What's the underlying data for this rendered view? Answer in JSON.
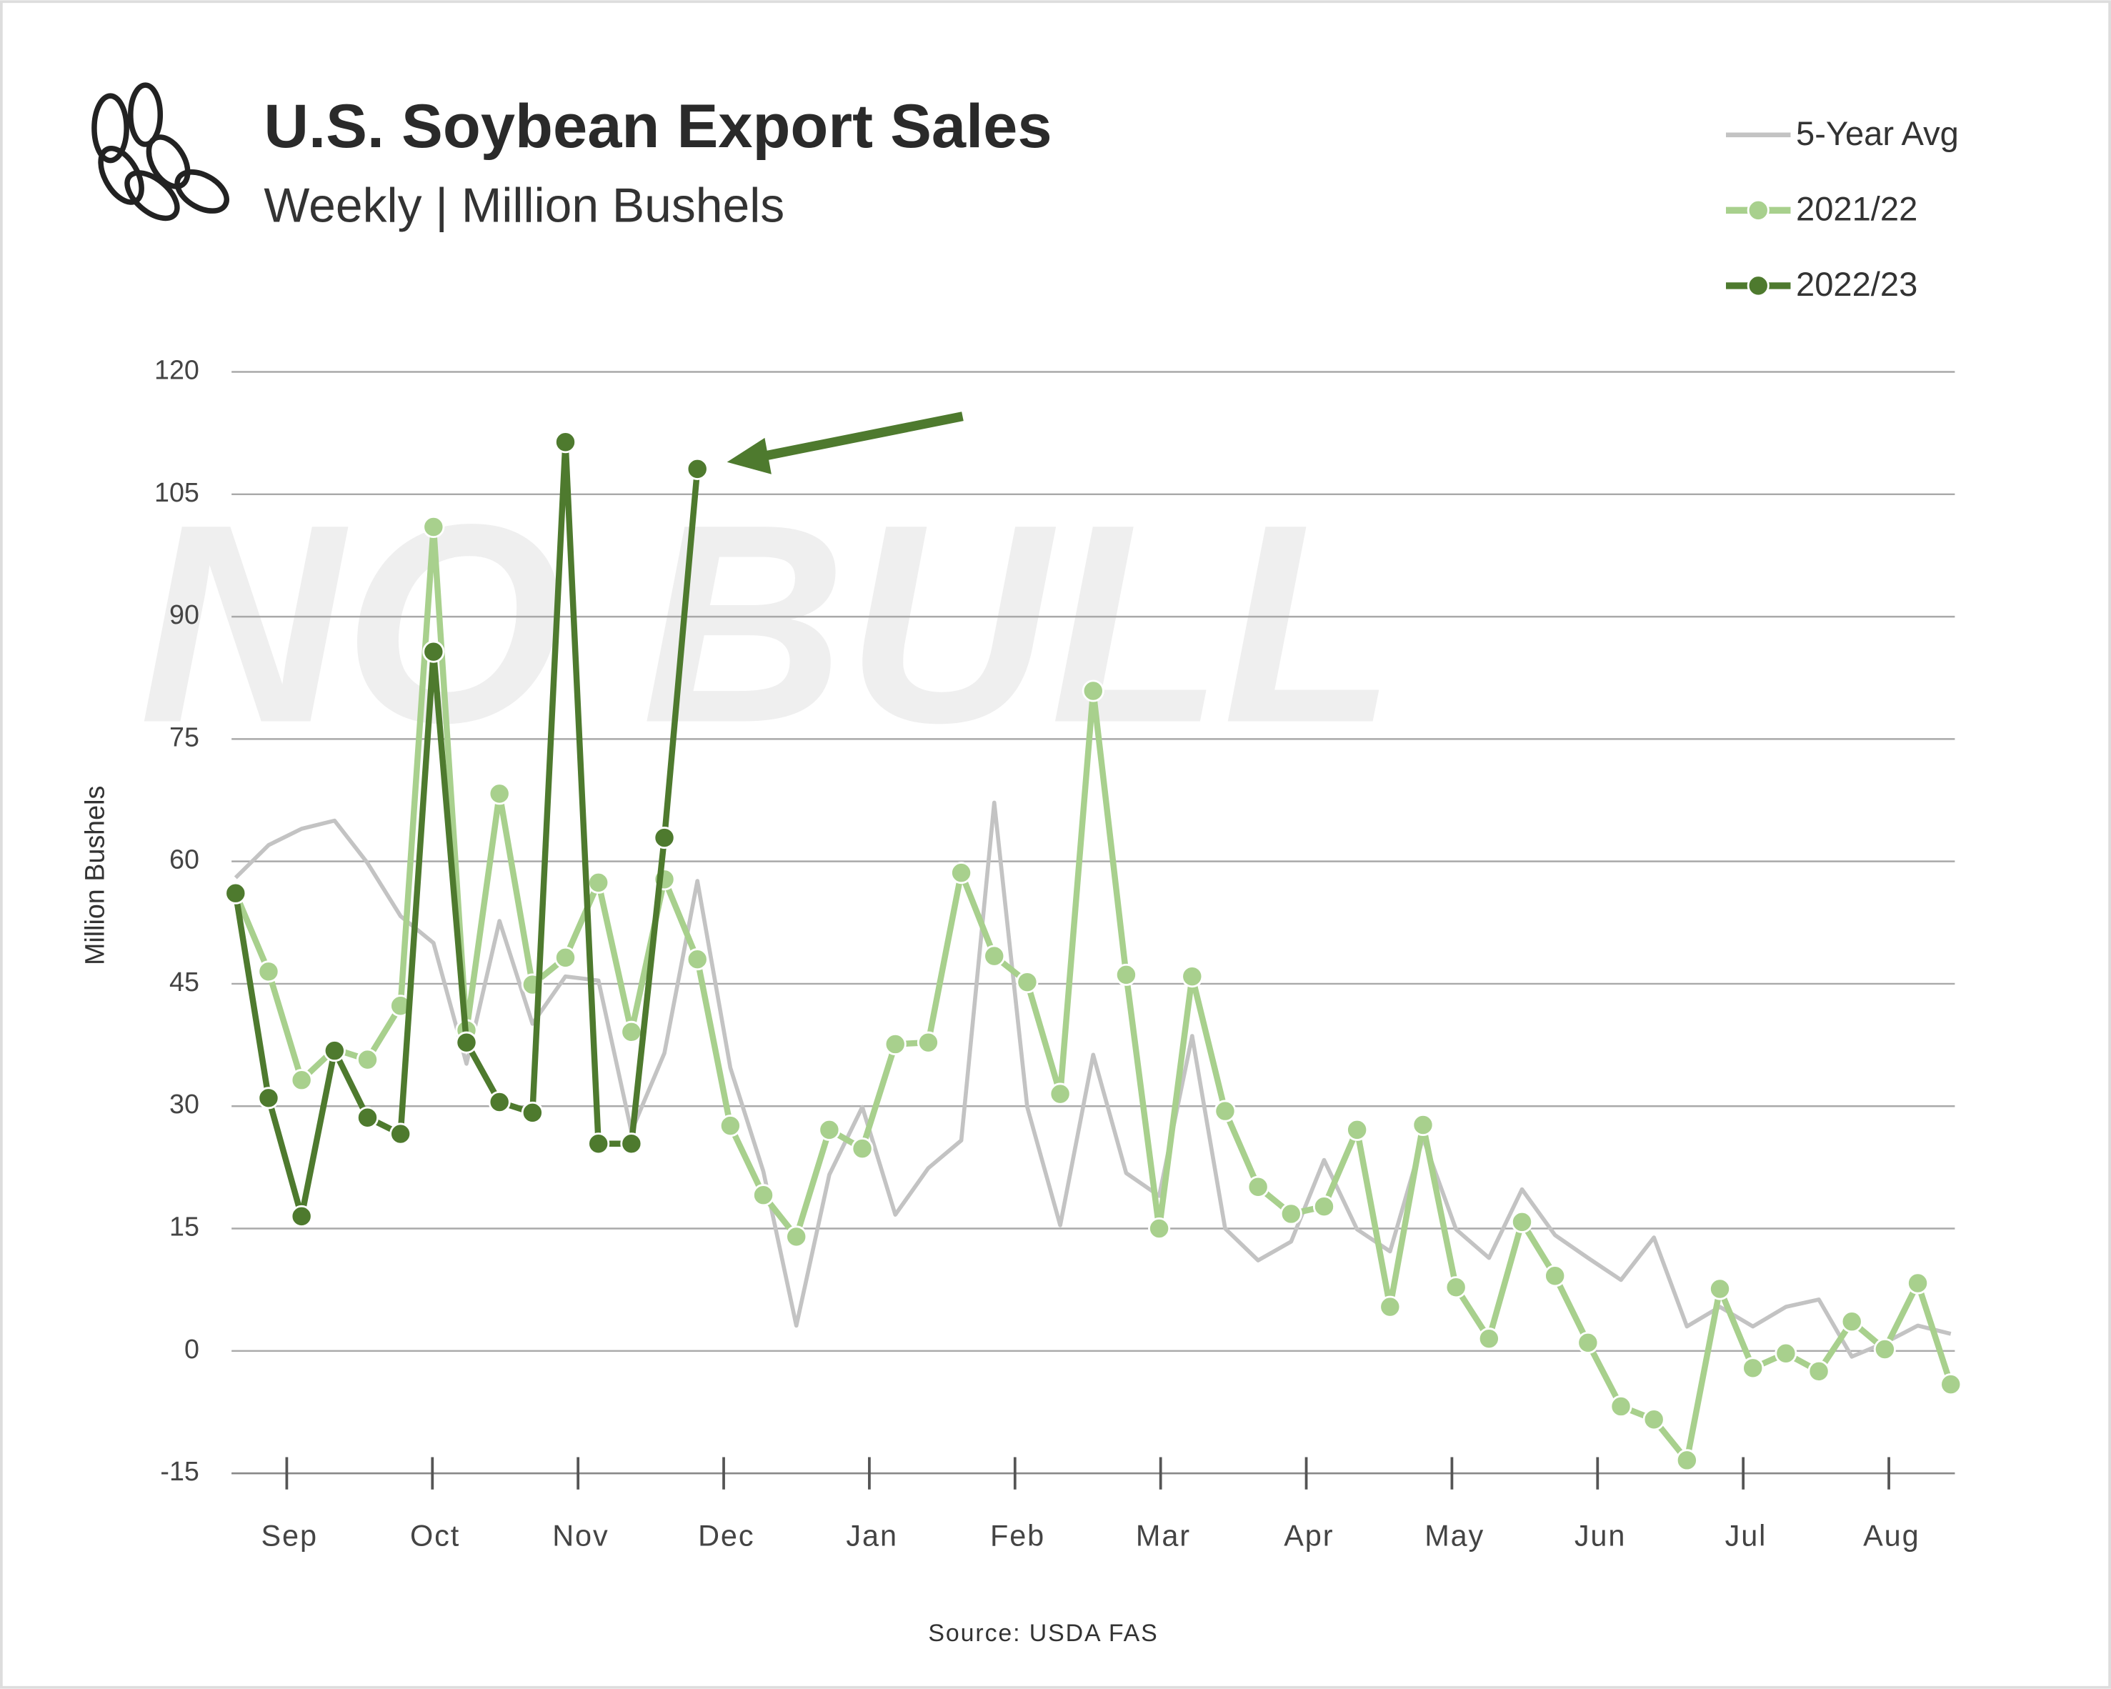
{
  "chart_data": {
    "type": "line",
    "title": "U.S. Soybean Export Sales",
    "subtitle": "Weekly | Million Bushels",
    "y_axis_label": "Million Bushels",
    "source": "Source: USDA FAS",
    "watermark": "NO BULL",
    "months": [
      "Sep",
      "Oct",
      "Nov",
      "Dec",
      "Jan",
      "Feb",
      "Mar",
      "Apr",
      "May",
      "Jun",
      "Jul",
      "Aug"
    ],
    "ylim": [
      -15,
      120
    ],
    "yticks": [
      -15,
      0,
      15,
      30,
      45,
      60,
      75,
      90,
      105,
      120
    ],
    "grid": true,
    "legend": "top-right",
    "series": [
      {
        "name": "5-Year Avg",
        "color": "#c3c3c3",
        "markers": false,
        "values": [
          58,
          62,
          64,
          65,
          59.8,
          53.3,
          50,
          35.2,
          52.7,
          40.1,
          45.9,
          45.4,
          26.9,
          36.5,
          57.6,
          34.7,
          22,
          3.1,
          21.6,
          29.9,
          16.7,
          22.4,
          25.8,
          67.2,
          29.9,
          15.4,
          36.3,
          21.8,
          19,
          38.6,
          15,
          11.1,
          13.4,
          23.4,
          14.9,
          12.2,
          26.1,
          14.9,
          11.4,
          19.8,
          14.2,
          11.4,
          8.7,
          13.9,
          3,
          5.4,
          3,
          5.4,
          6.3,
          -0.7,
          1,
          3.1,
          2.1
        ]
      },
      {
        "name": "2021/22",
        "color": "#a8d08d",
        "markers": true,
        "values": [
          56.1,
          46.5,
          33.2,
          37,
          35.7,
          42.3,
          101,
          39.3,
          68.3,
          44.9,
          48.2,
          57.4,
          39.1,
          57.8,
          48,
          27.6,
          19.1,
          14,
          27.1,
          24.8,
          37.6,
          37.8,
          58.6,
          48.4,
          45.2,
          31.5,
          80.9,
          46.1,
          15,
          45.9,
          29.4,
          20.1,
          16.8,
          17.7,
          27.1,
          5.4,
          27.7,
          7.8,
          1.5,
          15.8,
          9.2,
          1,
          -6.8,
          -8.4,
          -13.4,
          7.6,
          -2.1,
          -0.3,
          -2.5,
          3.6,
          0.2,
          8.3,
          -4.1
        ]
      },
      {
        "name": "2022/23",
        "color": "#4e7a2e",
        "markers": true,
        "values": [
          56.1,
          31,
          16.5,
          36.8,
          28.6,
          26.6,
          85.7,
          37.8,
          30.5,
          29.2,
          111.4,
          25.4,
          25.4,
          62.9,
          108.1,
          null,
          null,
          null,
          null,
          null,
          null,
          null,
          null,
          null,
          null,
          null,
          null,
          null,
          null,
          null,
          null,
          null,
          null,
          null,
          null,
          null,
          null,
          null,
          null,
          null,
          null,
          null,
          null,
          null,
          null,
          null,
          null,
          null,
          null,
          null,
          null,
          null,
          null
        ]
      }
    ]
  }
}
